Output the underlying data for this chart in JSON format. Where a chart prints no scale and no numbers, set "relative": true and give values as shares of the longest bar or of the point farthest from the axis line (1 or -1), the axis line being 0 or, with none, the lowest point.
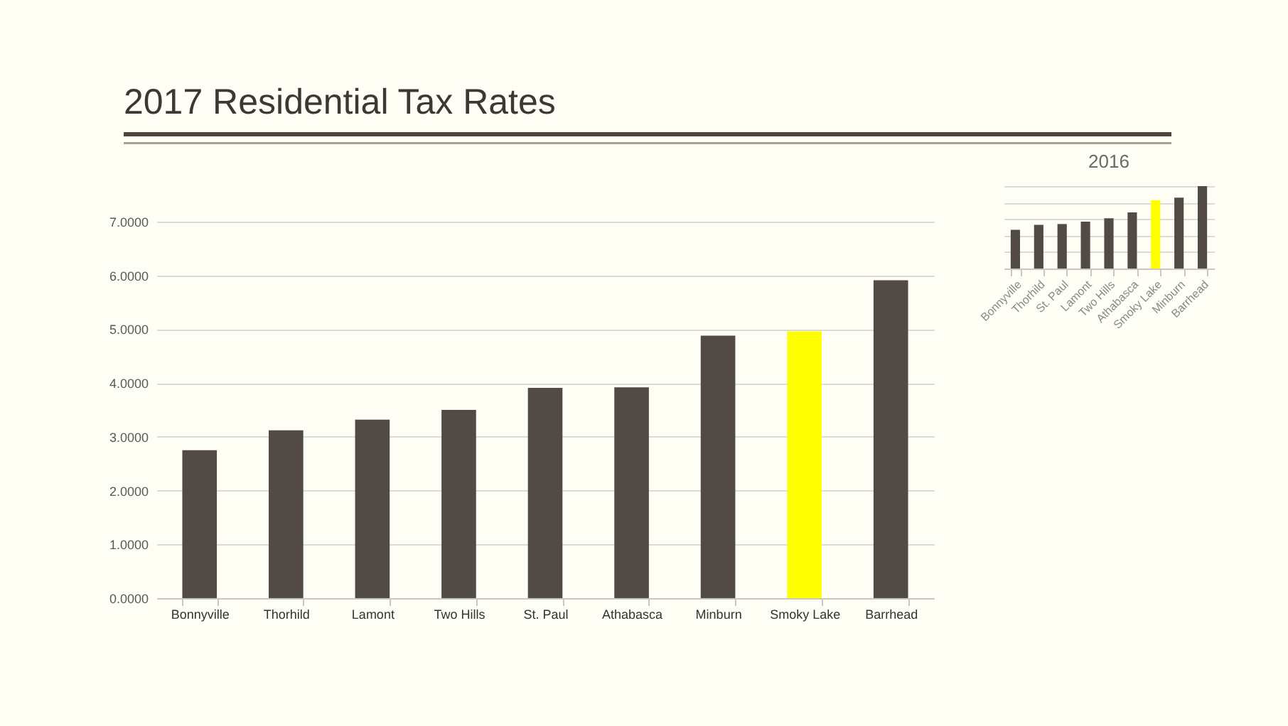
{
  "chart_data": [
    {
      "type": "bar",
      "title": "2017 Residential Tax Rates",
      "categories": [
        "Bonnyville",
        "Thorhild",
        "Lamont",
        "Two Hills",
        "St. Paul",
        "Athabasca",
        "Minburn",
        "Smoky Lake",
        "Barrhead"
      ],
      "values": [
        2.75,
        3.12,
        3.32,
        3.5,
        3.91,
        3.92,
        4.88,
        4.96,
        5.91
      ],
      "colors": [
        "#514a45",
        "#514a45",
        "#514a45",
        "#514a45",
        "#514a45",
        "#514a45",
        "#514a45",
        "#ffff00",
        "#514a45"
      ],
      "ylim": [
        0,
        7
      ],
      "yticks": [
        {
          "value": 0,
          "label": "0.0000"
        },
        {
          "value": 1,
          "label": "1.0000"
        },
        {
          "value": 2,
          "label": "2.0000"
        },
        {
          "value": 3,
          "label": "3.0000"
        },
        {
          "value": 4,
          "label": "4.0000"
        },
        {
          "value": 5,
          "label": "5.0000"
        },
        {
          "value": 6,
          "label": "6.0000"
        },
        {
          "value": 7,
          "label": "7.0000"
        }
      ],
      "grid": true
    },
    {
      "type": "bar",
      "title": "2016",
      "relative": true,
      "categories": [
        "Bonnyville",
        "Thorhild",
        "St. Paul",
        "Lamont",
        "Two Hills",
        "Athabasca",
        "Smoky Lake",
        "Minburn",
        "Barrhead"
      ],
      "values": [
        0.47,
        0.53,
        0.54,
        0.57,
        0.61,
        0.68,
        0.83,
        0.86,
        1
      ],
      "colors": [
        "#514a45",
        "#514a45",
        "#514a45",
        "#514a45",
        "#514a45",
        "#514a45",
        "#ffff00",
        "#514a45",
        "#514a45"
      ],
      "grid": true
    }
  ]
}
